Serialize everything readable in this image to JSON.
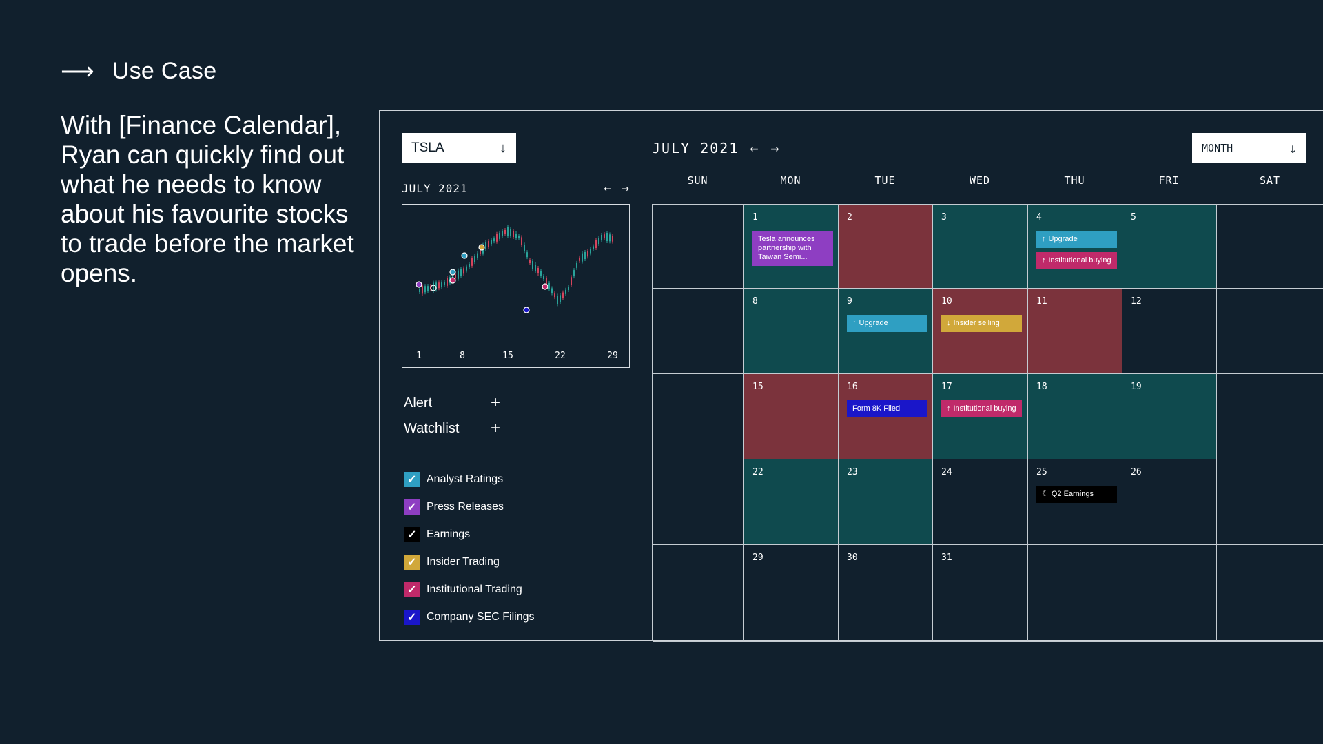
{
  "usecase": {
    "label": "Use Case"
  },
  "intro": "With [Finance Calendar], Ryan can quickly find out what he needs to know about his favourite stocks to trade before the market opens.",
  "sidebar": {
    "ticker": "TSLA",
    "mini_month": "JULY 2021",
    "alert_label": "Alert",
    "watchlist_label": "Watchlist",
    "filters": [
      {
        "label": "Analyst Ratings",
        "color": "#2f9fc2"
      },
      {
        "label": "Press Releases",
        "color": "#8e3ec2"
      },
      {
        "label": "Earnings",
        "color": "#000000"
      },
      {
        "label": "Insider Trading",
        "color": "#d1a83a"
      },
      {
        "label": "Institutional Trading",
        "color": "#c02a6a"
      },
      {
        "label": "Company SEC Filings",
        "color": "#1a16c9"
      }
    ]
  },
  "calendar": {
    "month_label": "JULY 2021",
    "view_label": "MONTH",
    "weekdays": [
      "SUN",
      "MON",
      "TUE",
      "WED",
      "THU",
      "FRI",
      "SAT"
    ],
    "cells": [
      {
        "day": "",
        "bg": "none",
        "events": []
      },
      {
        "day": "1",
        "bg": "teal",
        "events": [
          {
            "text": "Tesla announces partnership with Taiwan Semi...",
            "color": "#8e3ec2",
            "icon": ""
          }
        ]
      },
      {
        "day": "2",
        "bg": "red",
        "events": []
      },
      {
        "day": "3",
        "bg": "teal",
        "events": []
      },
      {
        "day": "4",
        "bg": "teal",
        "events": [
          {
            "text": "Upgrade",
            "color": "#2f9fc2",
            "icon": "↑"
          },
          {
            "text": "Institutional buying",
            "color": "#c02a6a",
            "icon": "↑"
          }
        ]
      },
      {
        "day": "5",
        "bg": "teal",
        "events": []
      },
      {
        "day": "",
        "bg": "none",
        "events": []
      },
      {
        "day": "",
        "bg": "none",
        "events": []
      },
      {
        "day": "8",
        "bg": "teal",
        "events": []
      },
      {
        "day": "9",
        "bg": "teal",
        "events": [
          {
            "text": "Upgrade",
            "color": "#2f9fc2",
            "icon": "↑"
          }
        ]
      },
      {
        "day": "10",
        "bg": "red",
        "events": [
          {
            "text": "Insider selling",
            "color": "#d1a83a",
            "icon": "↓"
          }
        ]
      },
      {
        "day": "11",
        "bg": "red",
        "events": []
      },
      {
        "day": "12",
        "bg": "none",
        "events": []
      },
      {
        "day": "",
        "bg": "none",
        "events": []
      },
      {
        "day": "",
        "bg": "none",
        "events": []
      },
      {
        "day": "15",
        "bg": "red",
        "events": []
      },
      {
        "day": "16",
        "bg": "red",
        "events": [
          {
            "text": "Form 8K Filed",
            "color": "#1a16c9",
            "icon": ""
          }
        ]
      },
      {
        "day": "17",
        "bg": "teal",
        "events": [
          {
            "text": "Institutional buying",
            "color": "#c02a6a",
            "icon": "↑"
          }
        ]
      },
      {
        "day": "18",
        "bg": "teal",
        "events": []
      },
      {
        "day": "19",
        "bg": "teal",
        "events": []
      },
      {
        "day": "",
        "bg": "none",
        "events": []
      },
      {
        "day": "",
        "bg": "none",
        "events": []
      },
      {
        "day": "22",
        "bg": "teal",
        "events": []
      },
      {
        "day": "23",
        "bg": "teal",
        "events": []
      },
      {
        "day": "24",
        "bg": "none",
        "events": []
      },
      {
        "day": "25",
        "bg": "none",
        "events": [
          {
            "text": "Q2 Earnings",
            "color": "#000000",
            "icon": "☾"
          }
        ]
      },
      {
        "day": "26",
        "bg": "none",
        "events": []
      },
      {
        "day": "",
        "bg": "none",
        "events": []
      },
      {
        "day": "",
        "bg": "none",
        "events": []
      },
      {
        "day": "29",
        "bg": "none",
        "events": []
      },
      {
        "day": "30",
        "bg": "none",
        "events": []
      },
      {
        "day": "31",
        "bg": "none",
        "events": []
      },
      {
        "day": "",
        "bg": "none",
        "events": []
      },
      {
        "day": "",
        "bg": "none",
        "events": []
      },
      {
        "day": "",
        "bg": "none",
        "events": []
      }
    ]
  },
  "mini_chart": {
    "x_ticks": [
      "1",
      "8",
      "15",
      "22",
      "29"
    ]
  }
}
